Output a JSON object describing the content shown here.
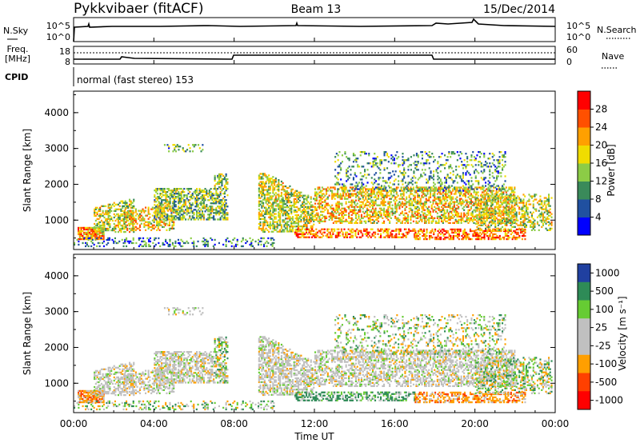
{
  "header": {
    "title": "Pykkvibaer (fitACF)",
    "beam": "Beam 13",
    "date": "15/Dec/2014"
  },
  "nsky_panel": {
    "left_label": "N.Sky",
    "right_label": "N.Search",
    "left_ticks": [
      "10^5",
      "10^0"
    ],
    "right_ticks": [
      "10^5",
      "10^0"
    ]
  },
  "freq_panel": {
    "left_label_line1": "Freq.",
    "left_label_line2": "[MHz]",
    "right_label": "Nave",
    "left_ticks": [
      "18",
      "8"
    ],
    "right_ticks": [
      "60",
      "0"
    ]
  },
  "cpid_panel": {
    "label": "CPID",
    "text": "normal (fast stereo) 153"
  },
  "colors": {
    "power": [
      "#0000ff",
      "#2050a0",
      "#3a8a5a",
      "#8ccc46",
      "#f0dc00",
      "#ffa000",
      "#ff5000",
      "#ff0000"
    ],
    "velocity": [
      "#ff0000",
      "#ff4000",
      "#ff9f00",
      "#c0c0c0",
      "#c0c0c0",
      "#66cc33",
      "#2e8b57",
      "#2040a0"
    ],
    "ground_scatter": "#c0c0c0"
  },
  "chart_data": [
    {
      "type": "heatmap",
      "name": "Power",
      "ylabel": "Slant Range [km]",
      "ylim": [
        180,
        4600
      ],
      "yticks": [
        "1000",
        "2000",
        "3000",
        "4000"
      ],
      "colorbar_label": "Power [dB]",
      "colorbar_ticks": [
        "4",
        "8",
        "12",
        "16",
        "20",
        "24",
        "28"
      ],
      "colorbar_range": [
        0,
        32
      ]
    },
    {
      "type": "heatmap",
      "name": "Velocity",
      "ylabel": "Slant Range [km]",
      "ylim": [
        180,
        4600
      ],
      "yticks": [
        "1000",
        "2000",
        "3000",
        "4000"
      ],
      "colorbar_label": "Velocity [m s⁻¹]",
      "colorbar_ticks": [
        "1000",
        "500",
        "100",
        "25",
        "-25",
        "-100",
        "-500",
        "-1000"
      ]
    }
  ],
  "time_axis": {
    "xlabel": "Time UT",
    "ticks": [
      "00:00",
      "04:00",
      "08:00",
      "12:00",
      "16:00",
      "20:00",
      "00:00"
    ]
  }
}
